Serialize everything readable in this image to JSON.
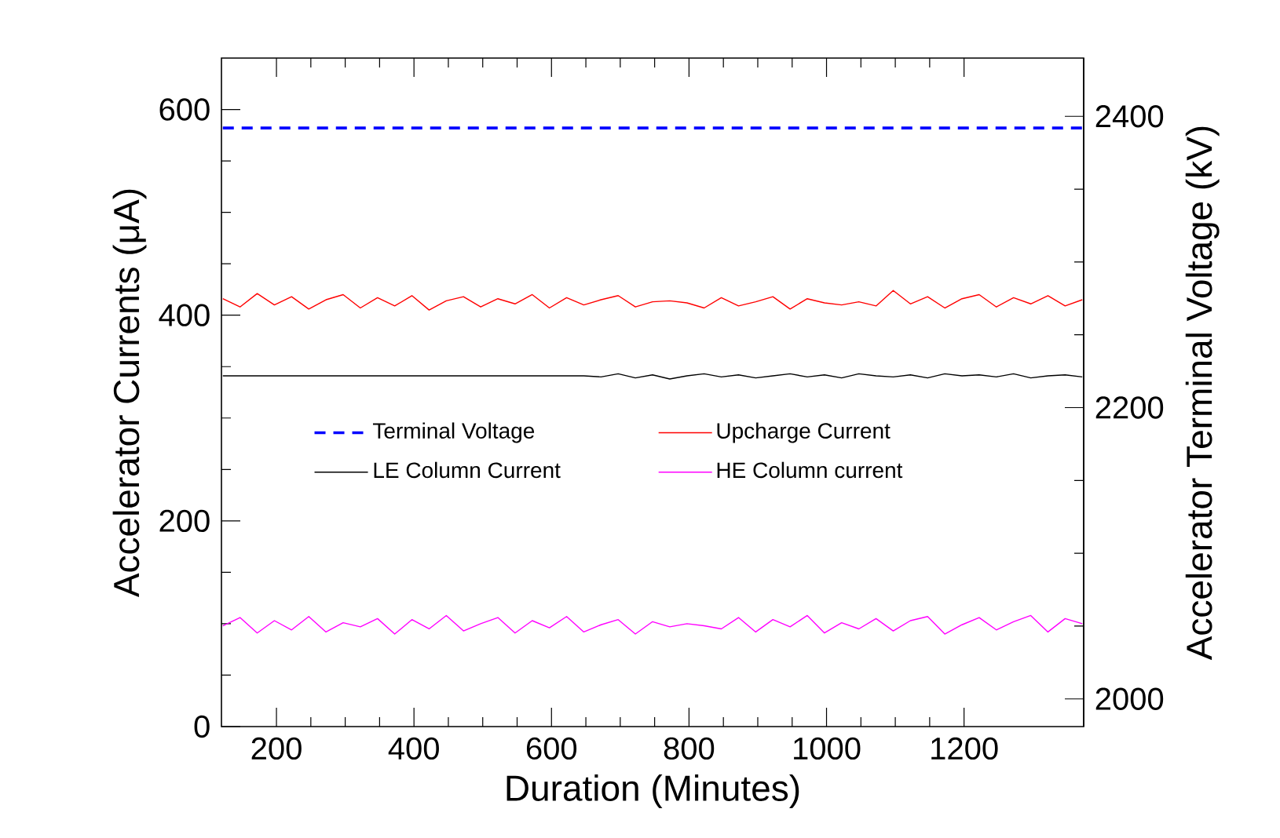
{
  "chart_data": {
    "type": "line",
    "xlabel": "Duration (Minutes)",
    "ylabel": "Accelerator Currents (μA)",
    "y2label": "Accelerator Terminal Voltage (kV)",
    "xlim": [
      120,
      1374
    ],
    "xticks": [
      200,
      400,
      600,
      800,
      1000,
      1200
    ],
    "ylim": [
      0,
      650
    ],
    "yticks": [
      0,
      200,
      400,
      600
    ],
    "y2lim": [
      1981,
      2440
    ],
    "y2ticks": [
      2000,
      2200,
      2400
    ],
    "legend": "center",
    "x": [
      122,
      147,
      172,
      197,
      222,
      247,
      272,
      297,
      322,
      347,
      372,
      397,
      422,
      447,
      472,
      497,
      522,
      547,
      572,
      597,
      622,
      647,
      672,
      697,
      722,
      747,
      772,
      797,
      822,
      847,
      872,
      897,
      922,
      947,
      972,
      997,
      1022,
      1047,
      1072,
      1097,
      1122,
      1147,
      1172,
      1197,
      1222,
      1247,
      1272,
      1297,
      1322,
      1347,
      1372
    ],
    "series": [
      {
        "name": "Terminal Voltage",
        "color": "#0000ff",
        "axis": "y2",
        "line_style": "dashed",
        "x": [
          122,
          1372
        ],
        "values": [
          2392,
          2392
        ]
      },
      {
        "name": "Upcharge Current",
        "color": "#ff0000",
        "values": [
          416,
          408,
          421,
          410,
          418,
          406,
          415,
          420,
          407,
          417,
          409,
          419,
          405,
          414,
          418,
          408,
          416,
          411,
          420,
          407,
          417,
          410,
          415,
          419,
          408,
          413,
          414,
          412,
          407,
          417,
          409,
          413,
          418,
          406,
          416,
          412,
          410,
          413,
          409,
          424,
          411,
          418,
          407,
          416,
          420,
          408,
          417,
          411,
          419,
          409,
          415
        ]
      },
      {
        "name": "LE Column Current",
        "color": "#000000",
        "values": [
          341,
          341,
          341,
          341,
          341,
          341,
          341,
          341,
          341,
          341,
          341,
          341,
          341,
          341,
          341,
          341,
          341,
          341,
          341,
          341,
          341,
          341,
          340,
          343,
          339,
          342,
          338,
          341,
          343,
          340,
          342,
          339,
          341,
          343,
          340,
          342,
          339,
          343,
          341,
          340,
          342,
          339,
          343,
          341,
          342,
          340,
          343,
          339,
          341,
          342,
          340
        ]
      },
      {
        "name": "HE Column current",
        "color": "#ff00ff",
        "values": [
          98,
          106,
          91,
          103,
          94,
          107,
          92,
          101,
          97,
          105,
          90,
          104,
          95,
          108,
          93,
          100,
          106,
          91,
          103,
          96,
          107,
          92,
          99,
          104,
          90,
          102,
          97,
          100,
          98,
          95,
          106,
          92,
          104,
          97,
          108,
          91,
          101,
          95,
          105,
          93,
          103,
          107,
          90,
          99,
          106,
          94,
          102,
          108,
          92,
          105,
          100
        ]
      }
    ]
  }
}
